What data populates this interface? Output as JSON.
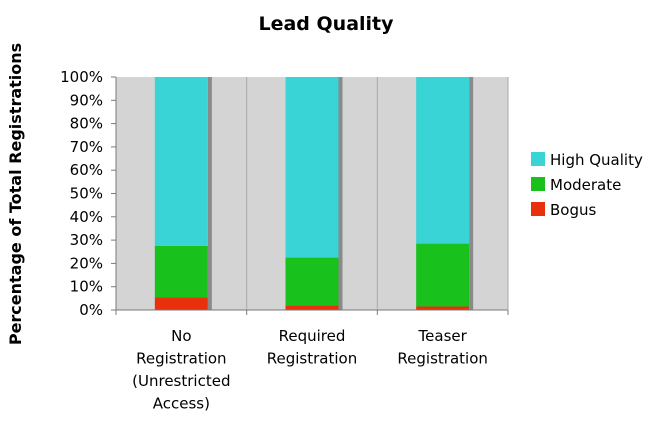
{
  "chart_data": {
    "type": "bar",
    "stacked": true,
    "percent": true,
    "title": "Lead Quality",
    "xlabel": "",
    "ylabel": "Percentage of Total Registrations",
    "ylim": [
      0,
      100
    ],
    "yticks": [
      "0%",
      "10%",
      "20%",
      "30%",
      "40%",
      "50%",
      "60%",
      "70%",
      "80%",
      "90%",
      "100%"
    ],
    "categories": [
      [
        "No",
        "Registration",
        "(Unrestricted",
        "Access)"
      ],
      [
        "Required",
        "Registration"
      ],
      [
        "Teaser",
        "Registration"
      ]
    ],
    "series": [
      {
        "name": "Bogus",
        "color": "#e8300c",
        "values": [
          5.5,
          2,
          1.5
        ]
      },
      {
        "name": "Moderate",
        "color": "#19c11c",
        "values": [
          22,
          20.5,
          27
        ]
      },
      {
        "name": "High Quality",
        "color": "#38d4d6",
        "values": [
          72.5,
          77.5,
          71.5
        ]
      }
    ],
    "legend_order": [
      "High Quality",
      "Moderate",
      "Bogus"
    ],
    "legend_position": "right",
    "plot_background": "#d4d4d4",
    "grid": false
  }
}
